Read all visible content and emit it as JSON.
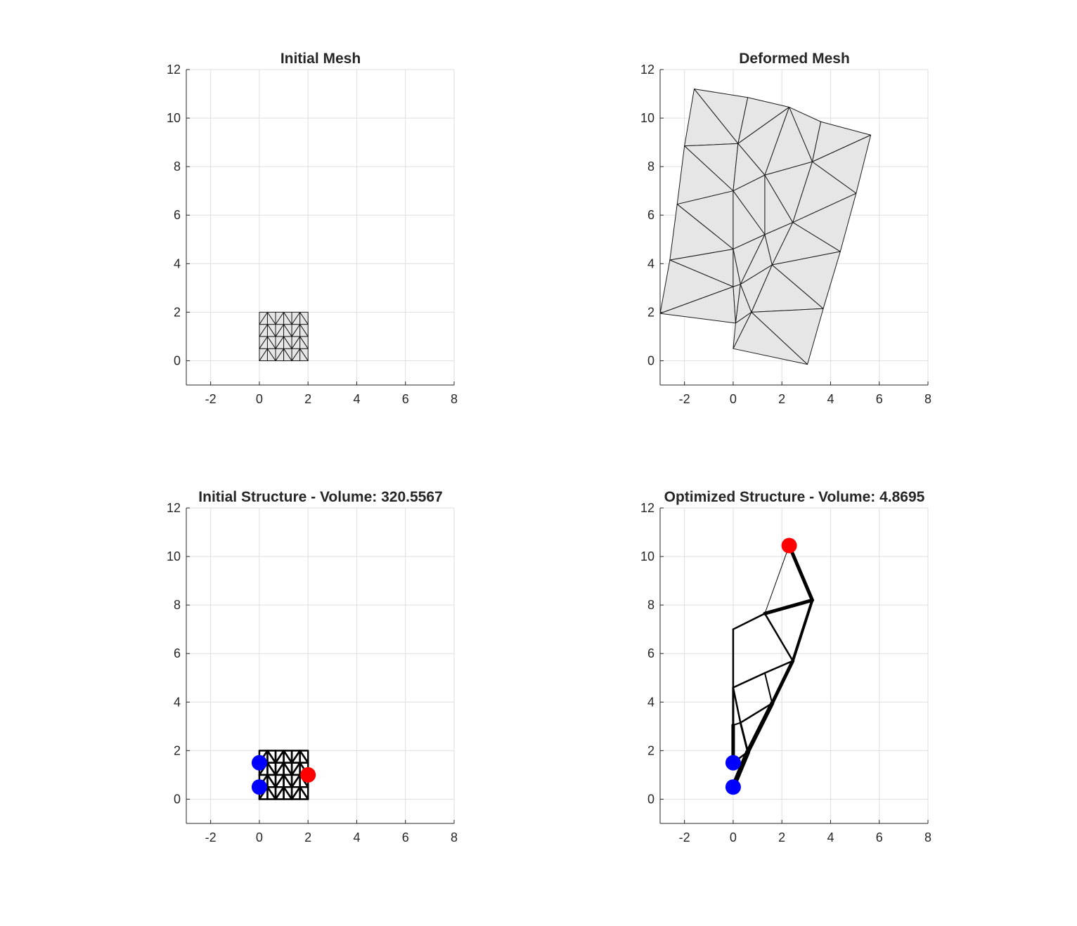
{
  "chart_data": [
    {
      "type": "mesh",
      "title": "Initial Mesh",
      "xlim": [
        -3,
        8
      ],
      "ylim": [
        -1,
        12
      ],
      "xticks": [
        -2,
        0,
        2,
        4,
        6,
        8
      ],
      "yticks": [
        0,
        2,
        4,
        6,
        8,
        10,
        12
      ],
      "grid": true,
      "face_color": "#e6e6e6",
      "edge_color": "#1a1a1a",
      "nodes": [
        [
          0,
          0
        ],
        [
          0.333,
          0
        ],
        [
          0.667,
          0
        ],
        [
          1,
          0
        ],
        [
          1.333,
          0
        ],
        [
          1.667,
          0
        ],
        [
          2,
          0
        ],
        [
          0,
          0.5
        ],
        [
          0.333,
          0.5
        ],
        [
          0.667,
          0.5
        ],
        [
          1,
          0.5
        ],
        [
          1.333,
          0.5
        ],
        [
          1.667,
          0.5
        ],
        [
          2,
          0.5
        ],
        [
          0,
          1
        ],
        [
          0.333,
          1
        ],
        [
          0.667,
          1
        ],
        [
          1,
          1
        ],
        [
          1.333,
          1
        ],
        [
          1.667,
          1
        ],
        [
          2,
          1
        ],
        [
          0,
          1.5
        ],
        [
          0.333,
          1.5
        ],
        [
          0.667,
          1.5
        ],
        [
          1,
          1.5
        ],
        [
          1.333,
          1.5
        ],
        [
          1.667,
          1.5
        ],
        [
          2,
          1.5
        ],
        [
          0,
          2
        ],
        [
          0.333,
          2
        ],
        [
          0.667,
          2
        ],
        [
          1,
          2
        ],
        [
          1.333,
          2
        ],
        [
          1.667,
          2
        ],
        [
          2,
          2
        ]
      ],
      "triangles": [
        [
          0,
          1,
          8
        ],
        [
          0,
          8,
          7
        ],
        [
          1,
          2,
          8
        ],
        [
          2,
          9,
          8
        ],
        [
          2,
          3,
          10
        ],
        [
          2,
          10,
          9
        ],
        [
          3,
          4,
          10
        ],
        [
          4,
          11,
          10
        ],
        [
          4,
          5,
          12
        ],
        [
          4,
          12,
          11
        ],
        [
          5,
          6,
          12
        ],
        [
          6,
          13,
          12
        ],
        [
          7,
          8,
          15
        ],
        [
          7,
          15,
          14
        ],
        [
          8,
          9,
          15
        ],
        [
          9,
          16,
          15
        ],
        [
          9,
          10,
          17
        ],
        [
          9,
          17,
          16
        ],
        [
          10,
          11,
          17
        ],
        [
          11,
          18,
          17
        ],
        [
          11,
          12,
          19
        ],
        [
          11,
          19,
          18
        ],
        [
          12,
          13,
          19
        ],
        [
          13,
          20,
          19
        ],
        [
          14,
          15,
          22
        ],
        [
          14,
          22,
          21
        ],
        [
          15,
          16,
          22
        ],
        [
          16,
          23,
          22
        ],
        [
          16,
          17,
          24
        ],
        [
          16,
          24,
          23
        ],
        [
          17,
          18,
          24
        ],
        [
          18,
          25,
          24
        ],
        [
          18,
          19,
          26
        ],
        [
          18,
          26,
          25
        ],
        [
          19,
          20,
          26
        ],
        [
          20,
          27,
          26
        ],
        [
          21,
          22,
          29
        ],
        [
          21,
          29,
          28
        ],
        [
          22,
          23,
          29
        ],
        [
          23,
          30,
          29
        ],
        [
          23,
          24,
          31
        ],
        [
          23,
          31,
          30
        ],
        [
          24,
          25,
          31
        ],
        [
          25,
          32,
          31
        ],
        [
          25,
          26,
          33
        ],
        [
          25,
          33,
          32
        ],
        [
          26,
          27,
          33
        ],
        [
          27,
          34,
          33
        ]
      ]
    },
    {
      "type": "mesh",
      "title": "Deformed Mesh",
      "xlim": [
        -3,
        8
      ],
      "ylim": [
        -1,
        12
      ],
      "xticks": [
        -2,
        0,
        2,
        4,
        6,
        8
      ],
      "yticks": [
        0,
        2,
        4,
        6,
        8,
        10,
        12
      ],
      "grid": true,
      "face_color": "#e6e6e6",
      "edge_color": "#1a1a1a",
      "nodes": [
        [
          -1.6,
          11.2
        ],
        [
          0.6,
          10.85
        ],
        [
          2.3,
          10.45
        ],
        [
          3.6,
          9.85
        ],
        [
          5.65,
          9.3
        ],
        [
          -2.0,
          8.85
        ],
        [
          0.2,
          8.95
        ],
        [
          1.3,
          7.65
        ],
        [
          3.25,
          8.2
        ],
        [
          5.05,
          6.9
        ],
        [
          -2.3,
          6.45
        ],
        [
          0.0,
          7.0
        ],
        [
          1.3,
          5.2
        ],
        [
          2.45,
          5.7
        ],
        [
          4.4,
          4.5
        ],
        [
          -2.6,
          4.15
        ],
        [
          0.0,
          4.6
        ],
        [
          0.3,
          3.15
        ],
        [
          1.6,
          3.95
        ],
        [
          3.7,
          2.15
        ],
        [
          -3.0,
          1.95
        ],
        [
          0.1,
          1.55
        ],
        [
          0.75,
          2.0
        ],
        [
          0.0,
          0.5
        ],
        [
          3.05,
          -0.15
        ],
        [
          0.0,
          3.05
        ]
      ],
      "triangles": [
        [
          0,
          1,
          6
        ],
        [
          0,
          6,
          5
        ],
        [
          1,
          2,
          6
        ],
        [
          2,
          7,
          6
        ],
        [
          2,
          3,
          8
        ],
        [
          2,
          8,
          7
        ],
        [
          3,
          4,
          8
        ],
        [
          5,
          6,
          11
        ],
        [
          5,
          11,
          10
        ],
        [
          6,
          7,
          11
        ],
        [
          7,
          12,
          11
        ],
        [
          7,
          13,
          12
        ],
        [
          7,
          8,
          13
        ],
        [
          8,
          4,
          9
        ],
        [
          8,
          9,
          13
        ],
        [
          10,
          11,
          16
        ],
        [
          10,
          16,
          15
        ],
        [
          11,
          12,
          16
        ],
        [
          12,
          17,
          16
        ],
        [
          12,
          18,
          17
        ],
        [
          12,
          13,
          18
        ],
        [
          13,
          9,
          14
        ],
        [
          13,
          14,
          18
        ],
        [
          15,
          16,
          25
        ],
        [
          15,
          25,
          20
        ],
        [
          16,
          17,
          25
        ],
        [
          25,
          17,
          21
        ],
        [
          25,
          21,
          20
        ],
        [
          17,
          22,
          21
        ],
        [
          17,
          18,
          22
        ],
        [
          18,
          19,
          22
        ],
        [
          18,
          14,
          19
        ],
        [
          22,
          19,
          24
        ],
        [
          22,
          24,
          23
        ],
        [
          21,
          22,
          23
        ]
      ]
    },
    {
      "type": "truss",
      "title": "Initial Structure - Volume: 320.5567",
      "xlim": [
        -3,
        8
      ],
      "ylim": [
        -1,
        12
      ],
      "xticks": [
        -2,
        0,
        2,
        4,
        6,
        8
      ],
      "yticks": [
        0,
        2,
        4,
        6,
        8,
        10,
        12
      ],
      "grid": true,
      "member_color": "#000000",
      "member_width": 2.5,
      "nodes": [
        [
          0,
          0
        ],
        [
          0.333,
          0
        ],
        [
          0.667,
          0
        ],
        [
          1,
          0
        ],
        [
          1.333,
          0
        ],
        [
          1.667,
          0
        ],
        [
          2,
          0
        ],
        [
          0,
          0.5
        ],
        [
          0.333,
          0.5
        ],
        [
          0.667,
          0.5
        ],
        [
          1,
          0.5
        ],
        [
          1.333,
          0.5
        ],
        [
          1.667,
          0.5
        ],
        [
          2,
          0.5
        ],
        [
          0,
          1
        ],
        [
          0.333,
          1
        ],
        [
          0.667,
          1
        ],
        [
          1,
          1
        ],
        [
          1.333,
          1
        ],
        [
          1.667,
          1
        ],
        [
          2,
          1
        ],
        [
          0,
          1.5
        ],
        [
          0.333,
          1.5
        ],
        [
          0.667,
          1.5
        ],
        [
          1,
          1.5
        ],
        [
          1.333,
          1.5
        ],
        [
          1.667,
          1.5
        ],
        [
          2,
          1.5
        ],
        [
          0,
          2
        ],
        [
          0.333,
          2
        ],
        [
          0.667,
          2
        ],
        [
          1,
          2
        ],
        [
          1.333,
          2
        ],
        [
          1.667,
          2
        ],
        [
          2,
          2
        ]
      ],
      "triangles": [
        [
          0,
          1,
          8
        ],
        [
          0,
          8,
          7
        ],
        [
          1,
          2,
          8
        ],
        [
          2,
          9,
          8
        ],
        [
          2,
          3,
          10
        ],
        [
          2,
          10,
          9
        ],
        [
          3,
          4,
          10
        ],
        [
          4,
          11,
          10
        ],
        [
          4,
          5,
          12
        ],
        [
          4,
          12,
          11
        ],
        [
          5,
          6,
          12
        ],
        [
          6,
          13,
          12
        ],
        [
          7,
          8,
          15
        ],
        [
          7,
          15,
          14
        ],
        [
          8,
          9,
          15
        ],
        [
          9,
          16,
          15
        ],
        [
          9,
          10,
          17
        ],
        [
          9,
          17,
          16
        ],
        [
          10,
          11,
          17
        ],
        [
          11,
          18,
          17
        ],
        [
          11,
          12,
          19
        ],
        [
          11,
          19,
          18
        ],
        [
          12,
          13,
          19
        ],
        [
          13,
          20,
          19
        ],
        [
          14,
          15,
          22
        ],
        [
          14,
          22,
          21
        ],
        [
          15,
          16,
          22
        ],
        [
          16,
          23,
          22
        ],
        [
          16,
          17,
          24
        ],
        [
          16,
          24,
          23
        ],
        [
          17,
          18,
          24
        ],
        [
          18,
          25,
          24
        ],
        [
          18,
          19,
          26
        ],
        [
          18,
          26,
          25
        ],
        [
          19,
          20,
          26
        ],
        [
          20,
          27,
          26
        ],
        [
          21,
          22,
          29
        ],
        [
          21,
          29,
          28
        ],
        [
          22,
          23,
          29
        ],
        [
          23,
          30,
          29
        ],
        [
          23,
          24,
          31
        ],
        [
          23,
          31,
          30
        ],
        [
          24,
          25,
          31
        ],
        [
          25,
          32,
          31
        ],
        [
          25,
          26,
          33
        ],
        [
          25,
          33,
          32
        ],
        [
          26,
          27,
          33
        ],
        [
          27,
          34,
          33
        ]
      ],
      "supports": [
        [
          0,
          1.5
        ],
        [
          0,
          0.5
        ]
      ],
      "loads": [
        [
          2,
          1
        ]
      ],
      "support_color": "#0000ff",
      "load_color": "#ff0000"
    },
    {
      "type": "truss",
      "title": "Optimized Structure - Volume: 4.8695",
      "xlim": [
        -3,
        8
      ],
      "ylim": [
        -1,
        12
      ],
      "xticks": [
        -2,
        0,
        2,
        4,
        6,
        8
      ],
      "yticks": [
        0,
        2,
        4,
        6,
        8,
        10,
        12
      ],
      "grid": true,
      "member_color": "#000000",
      "members": [
        {
          "from": [
            2.3,
            10.45
          ],
          "to": [
            3.25,
            8.2
          ],
          "w": 5
        },
        {
          "from": [
            2.3,
            10.45
          ],
          "to": [
            1.3,
            7.65
          ],
          "w": 1
        },
        {
          "from": [
            1.3,
            7.65
          ],
          "to": [
            3.25,
            8.2
          ],
          "w": 5
        },
        {
          "from": [
            3.25,
            8.2
          ],
          "to": [
            2.45,
            5.7
          ],
          "w": 4
        },
        {
          "from": [
            0,
            7.0
          ],
          "to": [
            1.3,
            7.65
          ],
          "w": 2.5
        },
        {
          "from": [
            1.3,
            7.65
          ],
          "to": [
            2.45,
            5.7
          ],
          "w": 2.5
        },
        {
          "from": [
            0,
            7.0
          ],
          "to": [
            0,
            4.6
          ],
          "w": 2.5
        },
        {
          "from": [
            0,
            4.6
          ],
          "to": [
            1.3,
            5.2
          ],
          "w": 2.5
        },
        {
          "from": [
            1.3,
            5.2
          ],
          "to": [
            2.45,
            5.7
          ],
          "w": 2.5
        },
        {
          "from": [
            1.3,
            5.2
          ],
          "to": [
            1.6,
            3.95
          ],
          "w": 2
        },
        {
          "from": [
            2.45,
            5.7
          ],
          "to": [
            1.6,
            3.95
          ],
          "w": 5
        },
        {
          "from": [
            0,
            4.6
          ],
          "to": [
            0.3,
            3.15
          ],
          "w": 2.5
        },
        {
          "from": [
            0.3,
            3.15
          ],
          "to": [
            1.6,
            3.95
          ],
          "w": 2.5
        },
        {
          "from": [
            0,
            4.6
          ],
          "to": [
            0,
            3.05
          ],
          "w": 3
        },
        {
          "from": [
            0,
            3.05
          ],
          "to": [
            0,
            1.5
          ],
          "w": 5
        },
        {
          "from": [
            0,
            3.05
          ],
          "to": [
            0.3,
            3.15
          ],
          "w": 2
        },
        {
          "from": [
            0.3,
            3.15
          ],
          "to": [
            0.6,
            1.95
          ],
          "w": 3
        },
        {
          "from": [
            1.6,
            3.95
          ],
          "to": [
            0.6,
            1.95
          ],
          "w": 6
        },
        {
          "from": [
            0.6,
            1.95
          ],
          "to": [
            0,
            0.5
          ],
          "w": 7
        },
        {
          "from": [
            0,
            1.5
          ],
          "to": [
            0.6,
            1.95
          ],
          "w": 2.5
        }
      ],
      "supports": [
        [
          0,
          1.5
        ],
        [
          0,
          0.5
        ]
      ],
      "loads": [
        [
          2.3,
          10.45
        ]
      ],
      "support_color": "#0000ff",
      "load_color": "#ff0000"
    }
  ]
}
